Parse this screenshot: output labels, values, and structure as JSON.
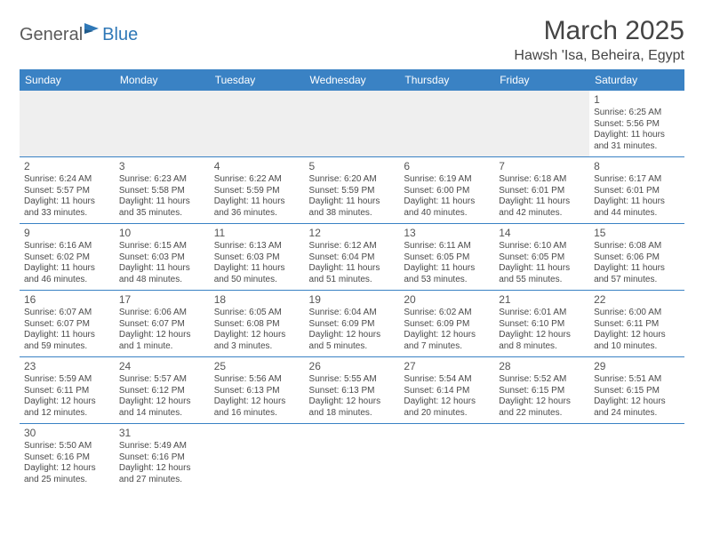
{
  "logo": {
    "part1": "General",
    "part2": "Blue"
  },
  "title": "March 2025",
  "location": "Hawsh 'Isa, Beheira, Egypt",
  "colors": {
    "header_bg": "#3a82c4",
    "header_text": "#ffffff",
    "border": "#3a82c4",
    "blank_bg": "#efefef",
    "text": "#4a4a4a",
    "title_text": "#444444",
    "logo_blue": "#2f78b7",
    "logo_gray": "#5a5a5a"
  },
  "dayHeaders": [
    "Sunday",
    "Monday",
    "Tuesday",
    "Wednesday",
    "Thursday",
    "Friday",
    "Saturday"
  ],
  "weeks": [
    [
      null,
      null,
      null,
      null,
      null,
      null,
      {
        "n": "1",
        "sunrise": "6:25 AM",
        "sunset": "5:56 PM",
        "daylight": "11 hours and 31 minutes."
      }
    ],
    [
      {
        "n": "2",
        "sunrise": "6:24 AM",
        "sunset": "5:57 PM",
        "daylight": "11 hours and 33 minutes."
      },
      {
        "n": "3",
        "sunrise": "6:23 AM",
        "sunset": "5:58 PM",
        "daylight": "11 hours and 35 minutes."
      },
      {
        "n": "4",
        "sunrise": "6:22 AM",
        "sunset": "5:59 PM",
        "daylight": "11 hours and 36 minutes."
      },
      {
        "n": "5",
        "sunrise": "6:20 AM",
        "sunset": "5:59 PM",
        "daylight": "11 hours and 38 minutes."
      },
      {
        "n": "6",
        "sunrise": "6:19 AM",
        "sunset": "6:00 PM",
        "daylight": "11 hours and 40 minutes."
      },
      {
        "n": "7",
        "sunrise": "6:18 AM",
        "sunset": "6:01 PM",
        "daylight": "11 hours and 42 minutes."
      },
      {
        "n": "8",
        "sunrise": "6:17 AM",
        "sunset": "6:01 PM",
        "daylight": "11 hours and 44 minutes."
      }
    ],
    [
      {
        "n": "9",
        "sunrise": "6:16 AM",
        "sunset": "6:02 PM",
        "daylight": "11 hours and 46 minutes."
      },
      {
        "n": "10",
        "sunrise": "6:15 AM",
        "sunset": "6:03 PM",
        "daylight": "11 hours and 48 minutes."
      },
      {
        "n": "11",
        "sunrise": "6:13 AM",
        "sunset": "6:03 PM",
        "daylight": "11 hours and 50 minutes."
      },
      {
        "n": "12",
        "sunrise": "6:12 AM",
        "sunset": "6:04 PM",
        "daylight": "11 hours and 51 minutes."
      },
      {
        "n": "13",
        "sunrise": "6:11 AM",
        "sunset": "6:05 PM",
        "daylight": "11 hours and 53 minutes."
      },
      {
        "n": "14",
        "sunrise": "6:10 AM",
        "sunset": "6:05 PM",
        "daylight": "11 hours and 55 minutes."
      },
      {
        "n": "15",
        "sunrise": "6:08 AM",
        "sunset": "6:06 PM",
        "daylight": "11 hours and 57 minutes."
      }
    ],
    [
      {
        "n": "16",
        "sunrise": "6:07 AM",
        "sunset": "6:07 PM",
        "daylight": "11 hours and 59 minutes."
      },
      {
        "n": "17",
        "sunrise": "6:06 AM",
        "sunset": "6:07 PM",
        "daylight": "12 hours and 1 minute."
      },
      {
        "n": "18",
        "sunrise": "6:05 AM",
        "sunset": "6:08 PM",
        "daylight": "12 hours and 3 minutes."
      },
      {
        "n": "19",
        "sunrise": "6:04 AM",
        "sunset": "6:09 PM",
        "daylight": "12 hours and 5 minutes."
      },
      {
        "n": "20",
        "sunrise": "6:02 AM",
        "sunset": "6:09 PM",
        "daylight": "12 hours and 7 minutes."
      },
      {
        "n": "21",
        "sunrise": "6:01 AM",
        "sunset": "6:10 PM",
        "daylight": "12 hours and 8 minutes."
      },
      {
        "n": "22",
        "sunrise": "6:00 AM",
        "sunset": "6:11 PM",
        "daylight": "12 hours and 10 minutes."
      }
    ],
    [
      {
        "n": "23",
        "sunrise": "5:59 AM",
        "sunset": "6:11 PM",
        "daylight": "12 hours and 12 minutes."
      },
      {
        "n": "24",
        "sunrise": "5:57 AM",
        "sunset": "6:12 PM",
        "daylight": "12 hours and 14 minutes."
      },
      {
        "n": "25",
        "sunrise": "5:56 AM",
        "sunset": "6:13 PM",
        "daylight": "12 hours and 16 minutes."
      },
      {
        "n": "26",
        "sunrise": "5:55 AM",
        "sunset": "6:13 PM",
        "daylight": "12 hours and 18 minutes."
      },
      {
        "n": "27",
        "sunrise": "5:54 AM",
        "sunset": "6:14 PM",
        "daylight": "12 hours and 20 minutes."
      },
      {
        "n": "28",
        "sunrise": "5:52 AM",
        "sunset": "6:15 PM",
        "daylight": "12 hours and 22 minutes."
      },
      {
        "n": "29",
        "sunrise": "5:51 AM",
        "sunset": "6:15 PM",
        "daylight": "12 hours and 24 minutes."
      }
    ],
    [
      {
        "n": "30",
        "sunrise": "5:50 AM",
        "sunset": "6:16 PM",
        "daylight": "12 hours and 25 minutes."
      },
      {
        "n": "31",
        "sunrise": "5:49 AM",
        "sunset": "6:16 PM",
        "daylight": "12 hours and 27 minutes."
      },
      null,
      null,
      null,
      null,
      null
    ]
  ],
  "labels": {
    "sunrise": "Sunrise:",
    "sunset": "Sunset:",
    "daylight": "Daylight:"
  }
}
